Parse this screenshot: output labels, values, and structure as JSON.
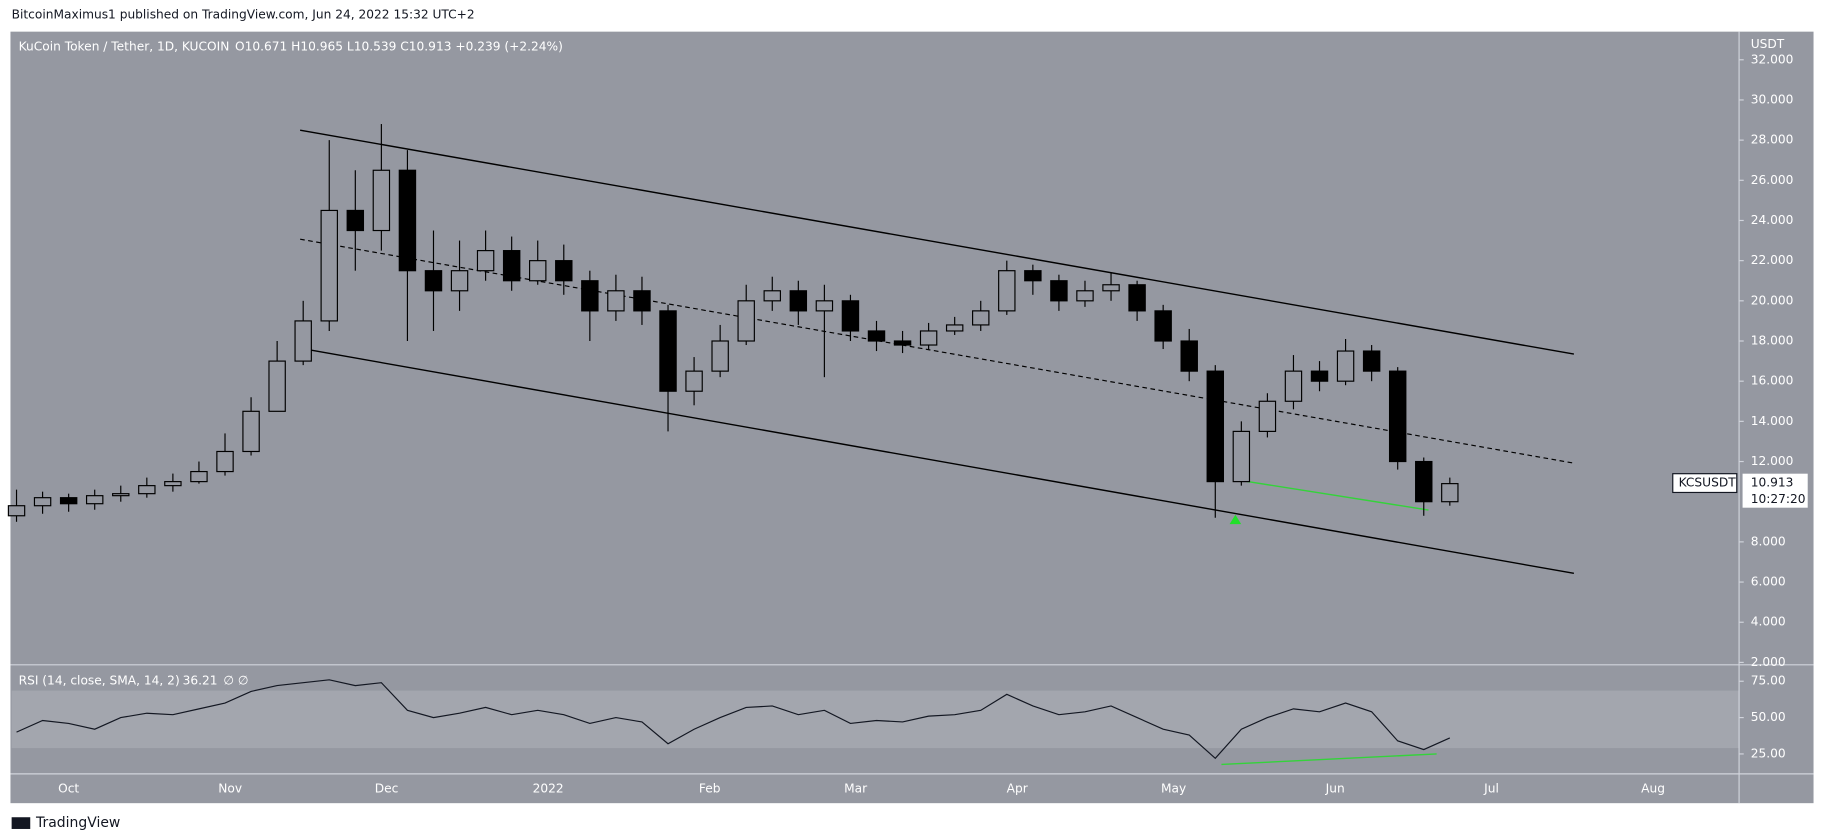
{
  "header": {
    "publisher": "BitcoinMaximus1 published on TradingView.com, Jun 24, 2022 15:32 UTC+2",
    "symbol": "KuCoin Token / Tether, 1D, KUCOIN",
    "ohlc": "O10.671 H10.965 L10.539 C10.913 +0.239 (+2.24%)",
    "currency": "USDT",
    "ticker": "KCSUSDT",
    "last_price": "10.913",
    "countdown": "10:27:20"
  },
  "footer": {
    "brand": "TradingView"
  },
  "chart_data": [
    {
      "type": "candlestick",
      "x": [
        -10,
        -5,
        0,
        5,
        10,
        15,
        20,
        25,
        30,
        35,
        40,
        45,
        50,
        55,
        60,
        65,
        70,
        75,
        80,
        85,
        90,
        95,
        100,
        105,
        110,
        115,
        120,
        125,
        130,
        135,
        140,
        145,
        150,
        155,
        160,
        165,
        170,
        175,
        180,
        185,
        190,
        195,
        200,
        205,
        210,
        215,
        220,
        225,
        230,
        235,
        240,
        245,
        250,
        255,
        260,
        265
      ],
      "open": [
        9.3,
        9.8,
        10.2,
        9.9,
        10.3,
        10.4,
        10.8,
        11.0,
        11.5,
        12.5,
        14.5,
        17.0,
        19.0,
        24.5,
        23.5,
        26.5,
        21.5,
        20.5,
        21.5,
        22.5,
        21.0,
        22.0,
        21.0,
        19.5,
        20.5,
        19.5,
        15.5,
        16.5,
        18.0,
        20.0,
        20.5,
        19.5,
        20.0,
        18.5,
        18.0,
        17.8,
        18.5,
        18.8,
        19.5,
        21.5,
        21.0,
        20.0,
        20.5,
        20.8,
        19.5,
        18.0,
        16.5,
        11.0,
        13.5,
        15.0,
        16.5,
        16.0,
        17.5,
        16.5,
        12.0,
        10.0
      ],
      "high": [
        10.6,
        10.5,
        10.4,
        10.6,
        10.8,
        11.2,
        11.4,
        12.0,
        13.4,
        15.2,
        18.0,
        20.0,
        28.0,
        26.5,
        28.8,
        27.5,
        23.5,
        23.0,
        23.5,
        23.2,
        23.0,
        22.8,
        21.5,
        21.3,
        21.2,
        19.8,
        17.2,
        18.8,
        20.8,
        21.2,
        21.0,
        20.8,
        20.3,
        19.0,
        18.5,
        18.9,
        19.2,
        20.0,
        22.0,
        21.8,
        21.3,
        21.0,
        21.4,
        21.0,
        19.8,
        18.6,
        16.8,
        14.0,
        15.4,
        17.3,
        17.0,
        18.1,
        17.8,
        16.7,
        12.2,
        11.2
      ],
      "low": [
        9.0,
        9.4,
        9.5,
        9.6,
        10.0,
        10.2,
        10.5,
        10.9,
        11.3,
        12.3,
        14.8,
        16.8,
        18.5,
        21.5,
        22.5,
        18.0,
        18.5,
        19.5,
        21.0,
        20.5,
        20.8,
        20.3,
        18.0,
        19.0,
        18.8,
        13.5,
        14.8,
        16.2,
        17.8,
        19.5,
        18.8,
        16.2,
        18.0,
        17.5,
        17.4,
        17.6,
        18.3,
        18.5,
        19.3,
        20.3,
        19.5,
        19.7,
        20.0,
        19.0,
        17.6,
        16.0,
        9.2,
        10.8,
        13.2,
        14.6,
        15.5,
        15.8,
        16.0,
        11.6,
        9.3,
        9.8
      ],
      "close": [
        9.8,
        10.2,
        9.9,
        10.3,
        10.4,
        10.8,
        11.0,
        11.5,
        12.5,
        14.5,
        17.0,
        19.0,
        24.5,
        23.5,
        26.5,
        21.5,
        20.5,
        21.5,
        22.5,
        21.0,
        22.0,
        21.0,
        19.5,
        20.5,
        19.5,
        15.5,
        16.5,
        18.0,
        20.0,
        20.5,
        19.5,
        20.0,
        18.5,
        18.0,
        17.8,
        18.5,
        18.8,
        19.5,
        21.5,
        21.0,
        20.0,
        20.5,
        20.8,
        19.5,
        18.0,
        16.5,
        11.0,
        13.5,
        15.0,
        16.5,
        16.0,
        17.5,
        16.5,
        12.0,
        10.0,
        10.9
      ],
      "xlim": [
        -10.94,
        320.5
      ],
      "ylim": [
        1.88,
        33.4
      ],
      "yticks": [
        {
          "value": 2,
          "label": "2.000"
        },
        {
          "value": 4,
          "label": "4.000"
        },
        {
          "value": 6,
          "label": "6.000"
        },
        {
          "value": 8,
          "label": "8.000"
        },
        {
          "value": 12,
          "label": "12.000"
        },
        {
          "value": 14,
          "label": "14.000"
        },
        {
          "value": 16,
          "label": "16.000"
        },
        {
          "value": 18,
          "label": "18.000"
        },
        {
          "value": 20,
          "label": "20.000"
        },
        {
          "value": 22,
          "label": "22.000"
        },
        {
          "value": 24,
          "label": "24.000"
        },
        {
          "value": 26,
          "label": "26.000"
        },
        {
          "value": 28,
          "label": "28.000"
        },
        {
          "value": 30,
          "label": "30.000"
        },
        {
          "value": 32,
          "label": "32.000"
        }
      ],
      "xticks": [
        {
          "value": 0,
          "label": "Oct"
        },
        {
          "value": 31,
          "label": "Nov"
        },
        {
          "value": 61,
          "label": "Dec"
        },
        {
          "value": 92,
          "label": "2022"
        },
        {
          "value": 123,
          "label": "Feb"
        },
        {
          "value": 151,
          "label": "Mar"
        },
        {
          "value": 182,
          "label": "Apr"
        },
        {
          "value": 212,
          "label": "May"
        },
        {
          "value": 243,
          "label": "Jun"
        },
        {
          "value": 273,
          "label": "Jul"
        },
        {
          "value": 304,
          "label": "Aug"
        }
      ],
      "up_color": "#9598a1",
      "down_color": "#000000"
    },
    {
      "type": "line",
      "title": "RSI (14, close, SMA, 14, 2)",
      "last_value": "36.21",
      "extras": "∅ ∅",
      "x": [
        -10,
        -5,
        0,
        5,
        10,
        15,
        20,
        25,
        30,
        35,
        40,
        45,
        50,
        55,
        60,
        65,
        70,
        75,
        80,
        85,
        90,
        95,
        100,
        105,
        110,
        115,
        120,
        125,
        130,
        135,
        140,
        145,
        150,
        155,
        160,
        165,
        170,
        175,
        180,
        185,
        190,
        195,
        200,
        205,
        210,
        215,
        220,
        225,
        230,
        235,
        240,
        245,
        250,
        255,
        260,
        265
      ],
      "values": [
        40,
        48,
        46,
        42,
        50,
        53,
        52,
        56,
        60,
        68,
        72,
        74,
        76,
        72,
        74,
        55,
        50,
        53,
        57,
        52,
        55,
        52,
        46,
        50,
        47,
        32,
        42,
        50,
        57,
        58,
        52,
        55,
        46,
        48,
        47,
        51,
        52,
        55,
        66,
        58,
        52,
        54,
        58,
        50,
        42,
        38,
        22,
        42,
        50,
        56,
        54,
        60,
        54,
        34,
        28,
        36
      ],
      "color": "#131722",
      "xlim": [
        -10.94,
        320.5
      ],
      "ylim": [
        11.3,
        86.3
      ],
      "yticks": [
        {
          "value": 25,
          "label": "25.00"
        },
        {
          "value": 50,
          "label": "50.00"
        },
        {
          "value": 75,
          "label": "75.00"
        }
      ]
    }
  ]
}
